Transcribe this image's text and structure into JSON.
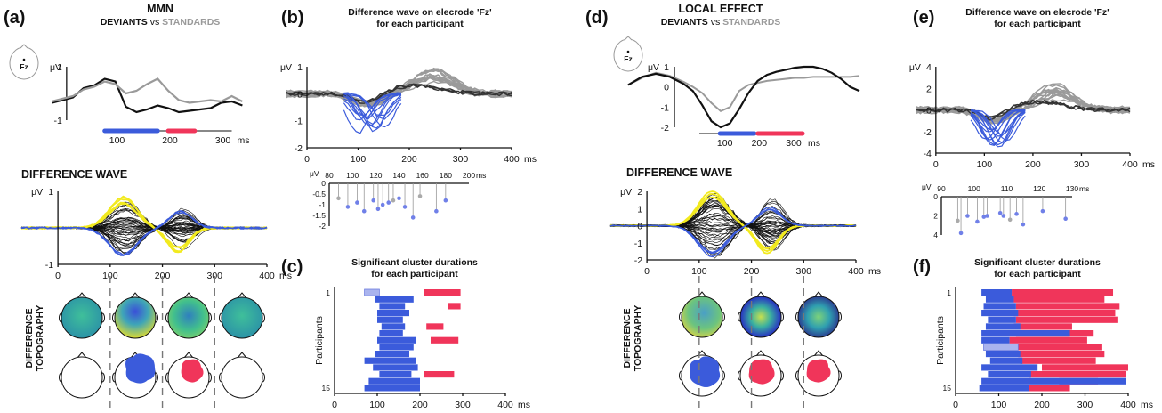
{
  "panels": {
    "a": {
      "label": "(a)",
      "title": "MMN",
      "subtitle_dev": "DEVIANTS",
      "subtitle_vs": "vs",
      "subtitle_std": "STANDARDS",
      "electrode": "Fz",
      "unit": "μV",
      "ms": "ms",
      "diff_wave_title": "DIFFERENCE WAVE",
      "topo_label_1": "DIFFERENCE",
      "topo_label_2": "TOPOGRAPHY"
    },
    "b": {
      "label": "(b)",
      "title_1": "Difference wave on elecrode 'Fz'",
      "title_2": "for each participant",
      "unit": "μV",
      "ms": "ms"
    },
    "c": {
      "label": "(c)",
      "title_1": "Significant cluster durations",
      "title_2": "for each participant",
      "ylabel": "Participants",
      "ms": "ms"
    },
    "d": {
      "label": "(d)",
      "title": "LOCAL EFFECT",
      "subtitle_dev": "DEVIANTS",
      "subtitle_vs": "vs",
      "subtitle_std": "STANDARDS",
      "electrode": "Fz",
      "unit": "μV",
      "ms": "ms",
      "diff_wave_title": "DIFFERENCE  WAVE",
      "topo_label_1": "DIFFERENCE",
      "topo_label_2": "TOPOGRAPHY"
    },
    "e": {
      "label": "(e)",
      "title_1": "Difference wave on elecrode 'Fz'",
      "title_2": "for each participant",
      "unit": "μV",
      "ms": "ms"
    },
    "f": {
      "label": "(f)",
      "title_1": "Significant cluster durations",
      "title_2": "for each participant",
      "ylabel": "Participants",
      "ms": "ms"
    }
  },
  "colors": {
    "deviant": "#111111",
    "standard": "#9a9a9a",
    "blue": "#3b5bdb",
    "red": "#f0355a",
    "yellow": "#f2ea1f",
    "light_blue": "#aab4ee"
  },
  "chart_data": [
    {
      "id": "a-erp",
      "type": "line",
      "xlim": [
        0,
        400
      ],
      "ylim": [
        -1,
        1
      ],
      "xticks": [
        100,
        200,
        300
      ],
      "yticks": [
        -1,
        1
      ],
      "series": [
        {
          "name": "DEVIANTS",
          "color": "#111111",
          "x": [
            -40,
            -20,
            0,
            20,
            40,
            60,
            80,
            100,
            120,
            140,
            160,
            180,
            200,
            220,
            240,
            260,
            280,
            300,
            320
          ],
          "y": [
            -0.35,
            -0.25,
            -0.15,
            0.2,
            0.3,
            0.55,
            0.45,
            -0.5,
            -0.7,
            -0.6,
            -0.45,
            -0.55,
            -0.7,
            -0.65,
            -0.6,
            -0.55,
            -0.35,
            -0.3,
            -0.45
          ]
        },
        {
          "name": "STANDARDS",
          "color": "#9a9a9a",
          "x": [
            -40,
            -20,
            0,
            20,
            40,
            60,
            80,
            100,
            120,
            140,
            160,
            180,
            200,
            220,
            240,
            260,
            280,
            300,
            320
          ],
          "y": [
            -0.3,
            -0.2,
            -0.1,
            0.15,
            0.25,
            0.45,
            0.35,
            0.0,
            0.1,
            0.35,
            0.55,
            0.1,
            -0.25,
            -0.35,
            -0.3,
            -0.25,
            -0.3,
            -0.1,
            -0.3
          ]
        }
      ],
      "clusters": [
        {
          "color": "blue",
          "start": 60,
          "end": 160
        },
        {
          "color": "red",
          "start": 180,
          "end": 230
        }
      ]
    },
    {
      "id": "a-diff",
      "type": "line",
      "xlim": [
        0,
        400
      ],
      "ylim": [
        -1,
        1
      ],
      "xticks": [
        0,
        100,
        200,
        300,
        400
      ],
      "yticks": [
        -1,
        1
      ],
      "note": "many channel traces (black), frontal channels (blue), posterior channels (yellow)"
    },
    {
      "id": "b-participants",
      "type": "line",
      "xlim": [
        0,
        400
      ],
      "ylim": [
        -2,
        1
      ],
      "xticks": [
        0,
        100,
        200,
        300,
        400
      ],
      "yticks": [
        -2,
        -1,
        0,
        1
      ]
    },
    {
      "id": "b-peaks",
      "type": "scatter",
      "xlim": [
        80,
        200
      ],
      "ylim": [
        -2,
        0
      ],
      "xticks": [
        80,
        100,
        120,
        140,
        160,
        180,
        200
      ],
      "yticks": [
        0,
        -0.5,
        -1,
        -1.5,
        -2
      ],
      "x": [
        88,
        96,
        104,
        110,
        118,
        122,
        126,
        131,
        135,
        140,
        145,
        152,
        158,
        172,
        180
      ],
      "y": [
        -0.7,
        -1.1,
        -0.9,
        -1.3,
        -0.8,
        -1.2,
        -1.0,
        -0.9,
        -0.8,
        -0.7,
        -1.1,
        -1.6,
        -0.6,
        -1.3,
        -0.8
      ],
      "grey_indices": [
        0,
        8,
        12
      ]
    },
    {
      "id": "c-clusters",
      "type": "bar",
      "xlim": [
        0,
        400
      ],
      "xticks": [
        0,
        100,
        200,
        300,
        400
      ],
      "yticks": [
        1,
        15
      ],
      "blue": [
        [
          70,
          105
        ],
        [
          95,
          185
        ],
        [
          105,
          165
        ],
        [
          100,
          175
        ],
        [
          100,
          160
        ],
        [
          110,
          165
        ],
        [
          105,
          160
        ],
        [
          100,
          190
        ],
        [
          105,
          185
        ],
        [
          95,
          175
        ],
        [
          70,
          190
        ],
        [
          90,
          195
        ],
        [
          105,
          180
        ],
        [
          80,
          200
        ],
        [
          70,
          200
        ]
      ],
      "red": [
        [
          210,
          295
        ],
        null,
        [
          265,
          295
        ],
        null,
        null,
        [
          215,
          255
        ],
        null,
        [
          225,
          290
        ],
        null,
        null,
        null,
        null,
        [
          210,
          280
        ],
        null,
        null
      ],
      "light_blue_first": true
    },
    {
      "id": "d-erp",
      "type": "line",
      "xlim": [
        0,
        300
      ],
      "ylim": [
        -2,
        1
      ],
      "xticks": [
        100,
        200,
        300
      ],
      "yticks": [
        -2,
        -1,
        0,
        1
      ],
      "clusters": [
        {
          "color": "blue",
          "start": 60,
          "end": 160
        },
        {
          "color": "red",
          "start": 170,
          "end": 300
        }
      ]
    },
    {
      "id": "d-diff",
      "type": "line",
      "xlim": [
        0,
        400
      ],
      "ylim": [
        -2,
        2
      ],
      "xticks": [
        0,
        100,
        200,
        300,
        400
      ],
      "yticks": [
        -2,
        -1,
        0,
        1,
        2
      ]
    },
    {
      "id": "e-participants",
      "type": "line",
      "xlim": [
        0,
        400
      ],
      "ylim": [
        -4,
        4
      ],
      "xticks": [
        0,
        100,
        200,
        300,
        400
      ],
      "yticks": [
        4,
        2,
        0,
        -2,
        -4
      ]
    },
    {
      "id": "e-peaks",
      "type": "scatter",
      "xlim": [
        90,
        130
      ],
      "ylim": [
        0,
        4
      ],
      "xticks": [
        90,
        100,
        110,
        120,
        130
      ],
      "yticks": [
        0,
        2,
        4
      ],
      "x": [
        95,
        96,
        98,
        101,
        103,
        104,
        108,
        109,
        111,
        113,
        115,
        121,
        128
      ],
      "y": [
        2.5,
        3.8,
        2.0,
        2.6,
        2.1,
        2.0,
        1.7,
        2.0,
        2.4,
        1.8,
        2.9,
        1.5,
        2.3
      ],
      "grey_indices": [
        0,
        8
      ]
    },
    {
      "id": "f-clusters",
      "type": "bar",
      "xlim": [
        0,
        400
      ],
      "xticks": [
        0,
        100,
        200,
        300,
        400
      ],
      "yticks": [
        1,
        15
      ],
      "blue": [
        [
          60,
          130
        ],
        [
          70,
          135
        ],
        [
          65,
          140
        ],
        [
          60,
          145
        ],
        [
          75,
          140
        ],
        [
          70,
          150
        ],
        [
          60,
          265
        ],
        [
          60,
          125
        ],
        [
          65,
          145
        ],
        [
          70,
          150
        ],
        [
          80,
          155
        ],
        [
          60,
          190
        ],
        [
          75,
          175
        ],
        [
          60,
          395
        ],
        [
          55,
          170
        ]
      ],
      "red": [
        [
          130,
          365
        ],
        [
          135,
          345
        ],
        [
          140,
          380
        ],
        [
          135,
          370
        ],
        [
          140,
          375
        ],
        [
          135,
          270
        ],
        [
          140,
          320
        ],
        [
          125,
          305
        ],
        [
          140,
          340
        ],
        [
          145,
          345
        ],
        [
          150,
          325
        ],
        [
          200,
          400
        ],
        [
          170,
          395
        ],
        [
          240,
          330
        ],
        [
          170,
          265
        ]
      ],
      "light_blue_row": 8
    }
  ]
}
